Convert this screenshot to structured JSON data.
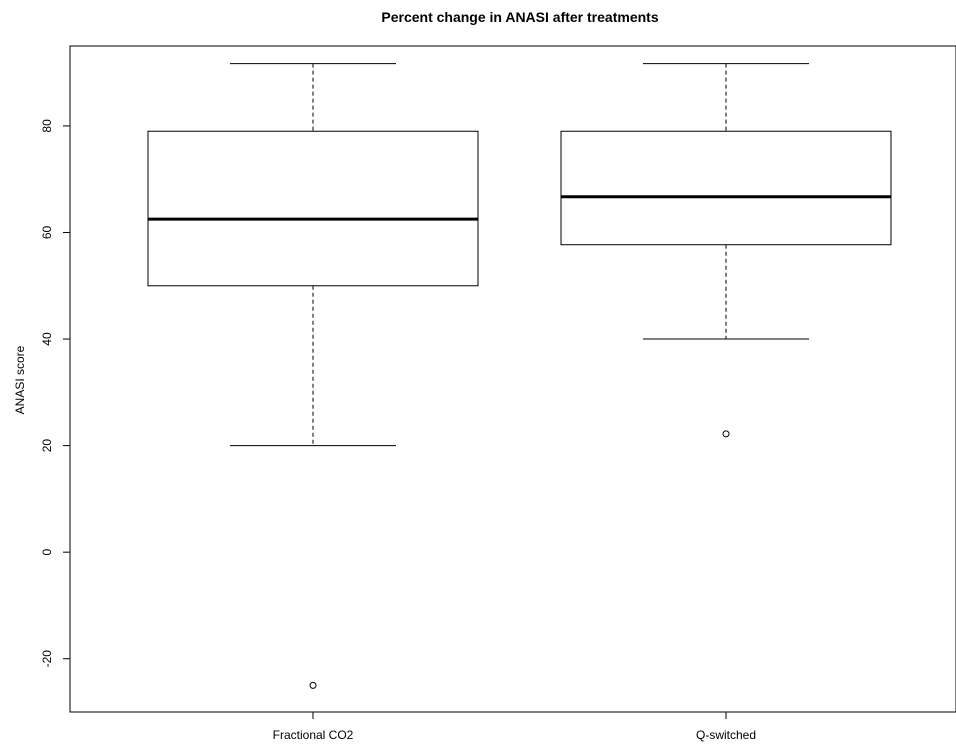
{
  "chart_data": {
    "type": "boxplot",
    "title": "Percent change in ANASI after treatments",
    "xlabel": "",
    "ylabel": "ANASI score",
    "ylim": [
      -30,
      95
    ],
    "yticks": [
      -20,
      0,
      20,
      40,
      60,
      80
    ],
    "grid": false,
    "categories": [
      "Fractional CO2",
      "Q-switched"
    ],
    "boxes": [
      {
        "category": "Fractional CO2",
        "whisker_low": 20,
        "q1": 50,
        "median": 62.5,
        "q3": 79,
        "whisker_high": 91.7,
        "outliers": [
          -25
        ]
      },
      {
        "category": "Q-switched",
        "whisker_low": 40,
        "q1": 57.7,
        "median": 66.7,
        "q3": 79,
        "whisker_high": 91.7,
        "outliers": [
          22.2
        ]
      }
    ]
  }
}
